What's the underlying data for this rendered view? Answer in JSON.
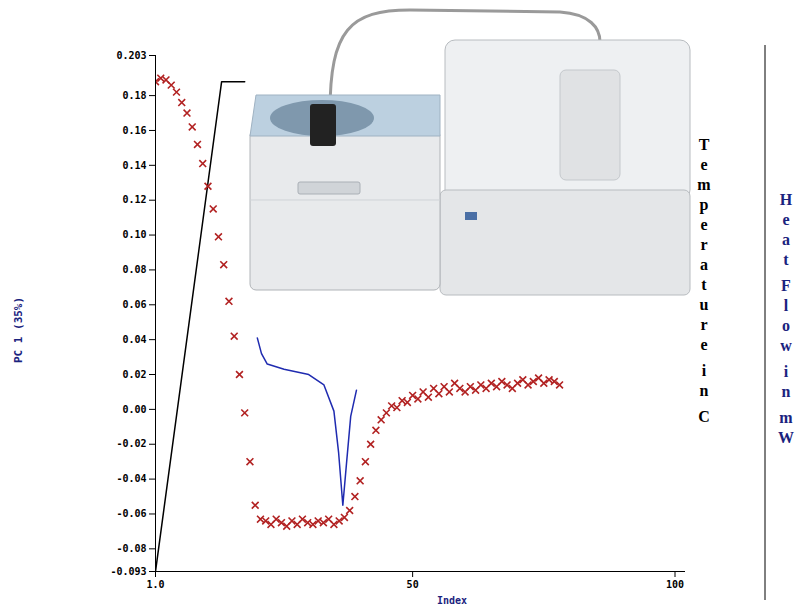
{
  "chart_data": {
    "type": "scatter",
    "x_label": "Index",
    "y_label": "PC 1 (35%)",
    "annotations": [
      "Temperature in C",
      "Heat Flow in mW"
    ],
    "xlim": [
      1,
      102
    ],
    "xticks": [
      {
        "value": 1,
        "label": "1.0"
      },
      50,
      100
    ],
    "ylim": [
      -0.093,
      0.203
    ],
    "yticks": [
      0.203,
      0.18,
      0.16,
      0.14,
      0.12,
      {
        "value": 0.1,
        "label": "0.10"
      },
      0.08,
      0.06,
      0.04,
      0.02,
      {
        "value": 0,
        "label": "0.00"
      },
      -0.02,
      -0.04,
      -0.06,
      -0.08,
      -0.093
    ],
    "grid": false,
    "series": [
      {
        "type": "line",
        "color": "#1f2bb0",
        "line_style": "solid",
        "x": [
          20.4,
          21.2,
          22.3,
          25.5,
          30.2,
          33.1,
          35,
          35.9,
          36.7,
          37.4,
          38.2,
          39.3
        ],
        "values": [
          0.041,
          0.032,
          0.026,
          0.023,
          0.02,
          0.014,
          -0.001,
          -0.025,
          -0.055,
          -0.031,
          -0.004,
          0.011
        ]
      },
      {
        "type": "line",
        "color": "#000000",
        "line_style": "solid",
        "x": [
          1,
          13.6,
          18
        ],
        "values": [
          -0.093,
          0.188,
          0.188
        ]
      },
      {
        "type": "scatter",
        "color": "#b22222",
        "marker": "x",
        "x": [
          1,
          2,
          3,
          4,
          5,
          6,
          7,
          8,
          9,
          10,
          11,
          12,
          13,
          14,
          15,
          16,
          17,
          18,
          19,
          20,
          21,
          22,
          23,
          24,
          25,
          26,
          27,
          28,
          29,
          30,
          31,
          32,
          33,
          34,
          35,
          36,
          37,
          38,
          39,
          40,
          41,
          42,
          43,
          44,
          45,
          46,
          47,
          48,
          49,
          50,
          51,
          52,
          53,
          54,
          55,
          56,
          57,
          58,
          59,
          60,
          61,
          62,
          63,
          64,
          65,
          66,
          67,
          68,
          69,
          70,
          71,
          72,
          73,
          74,
          75,
          76,
          77,
          78
        ],
        "values": [
          0.188,
          0.19,
          0.189,
          0.186,
          0.182,
          0.176,
          0.17,
          0.162,
          0.152,
          0.141,
          0.128,
          0.115,
          0.099,
          0.083,
          0.062,
          0.042,
          0.02,
          -0.002,
          -0.03,
          -0.055,
          -0.063,
          -0.064,
          -0.066,
          -0.063,
          -0.065,
          -0.067,
          -0.064,
          -0.066,
          -0.063,
          -0.065,
          -0.066,
          -0.064,
          -0.065,
          -0.063,
          -0.066,
          -0.064,
          -0.062,
          -0.058,
          -0.05,
          -0.041,
          -0.03,
          -0.02,
          -0.012,
          -0.006,
          -0.002,
          0.002,
          0.001,
          0.005,
          0.004,
          0.008,
          0.006,
          0.01,
          0.007,
          0.012,
          0.009,
          0.013,
          0.01,
          0.015,
          0.012,
          0.01,
          0.013,
          0.011,
          0.014,
          0.012,
          0.015,
          0.013,
          0.016,
          0.014,
          0.012,
          0.015,
          0.017,
          0.014,
          0.016,
          0.018,
          0.015,
          0.017,
          0.016,
          0.014
        ]
      }
    ]
  }
}
